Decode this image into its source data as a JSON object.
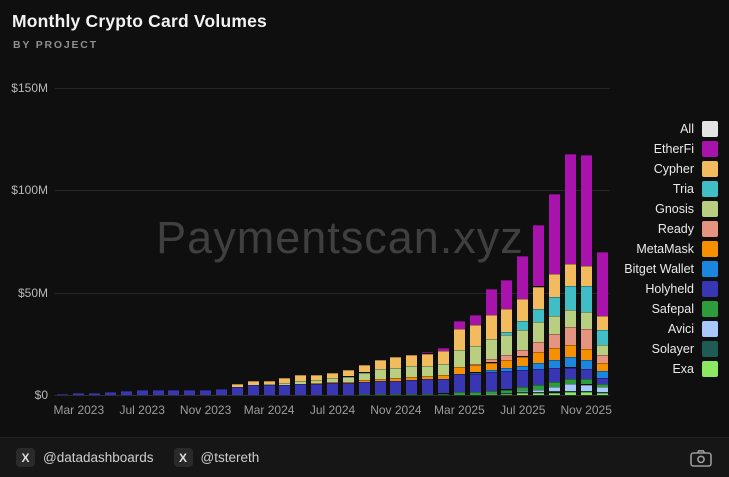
{
  "header": {
    "title": "Monthly Crypto Card Volumes",
    "subtitle": "BY PROJECT"
  },
  "watermark": "Paymentscan.xyz",
  "footer": {
    "handles": [
      "@datadashboards",
      "@tstereth"
    ],
    "x_icon_glyph": "X"
  },
  "chart_data": {
    "type": "bar",
    "stacked": true,
    "title": "Monthly Crypto Card Volumes",
    "subtitle": "BY PROJECT",
    "unit": "USD millions per month",
    "grid": true,
    "legend_position": "right",
    "ylim": [
      0,
      150
    ],
    "y_ticks": [
      {
        "label": "$0",
        "value": 0
      },
      {
        "label": "$50M",
        "value": 50
      },
      {
        "label": "$100M",
        "value": 100
      },
      {
        "label": "$150M",
        "value": 150
      }
    ],
    "categories": [
      "Feb 2023",
      "Mar 2023",
      "Apr 2023",
      "May 2023",
      "Jun 2023",
      "Jul 2023",
      "Aug 2023",
      "Sep 2023",
      "Oct 2023",
      "Nov 2023",
      "Dec 2023",
      "Jan 2024",
      "Feb 2024",
      "Mar 2024",
      "Apr 2024",
      "May 2024",
      "Jun 2024",
      "Jul 2024",
      "Aug 2024",
      "Sep 2024",
      "Oct 2024",
      "Nov 2024",
      "Dec 2024",
      "Jan 2025",
      "Feb 2025",
      "Mar 2025",
      "Apr 2025",
      "May 2025",
      "Jun 2025",
      "Jul 2025",
      "Aug 2025",
      "Sep 2025",
      "Oct 2025",
      "Nov 2025",
      "Dec 2025"
    ],
    "x_tick_labels": [
      "Mar 2023",
      "Jul 2023",
      "Nov 2023",
      "Mar 2024",
      "Jul 2024",
      "Nov 2024",
      "Mar 2025",
      "Jul 2025",
      "Nov 2025"
    ],
    "x_tick_indices": [
      1,
      5,
      9,
      13,
      17,
      21,
      25,
      29,
      33
    ],
    "legend": [
      {
        "name": "All",
        "color": "#e4e4e4"
      },
      {
        "name": "EtherFi",
        "color": "#a813ab"
      },
      {
        "name": "Cypher",
        "color": "#f2bb5e"
      },
      {
        "name": "Tria",
        "color": "#40bdc5"
      },
      {
        "name": "Gnosis",
        "color": "#b8cf82"
      },
      {
        "name": "Ready",
        "color": "#e49480"
      },
      {
        "name": "MetaMask",
        "color": "#f59100"
      },
      {
        "name": "Bitget Wallet",
        "color": "#1b86dd"
      },
      {
        "name": "Holyheld",
        "color": "#3936b4"
      },
      {
        "name": "Safepal",
        "color": "#2d9c3c"
      },
      {
        "name": "Avici",
        "color": "#a9c8fb"
      },
      {
        "name": "Solayer",
        "color": "#1e5b55"
      },
      {
        "name": "Exa",
        "color": "#8ce763"
      }
    ],
    "stack_order_bottom_to_top": [
      "Exa",
      "Solayer",
      "Avici",
      "Safepal",
      "Holyheld",
      "Bitget Wallet",
      "MetaMask",
      "Ready",
      "Gnosis",
      "Tria",
      "Cypher",
      "EtherFi"
    ],
    "series": [
      {
        "name": "EtherFi",
        "color": "#a813ab",
        "values": [
          0,
          0,
          0,
          0,
          0,
          0,
          0,
          0,
          0,
          0,
          0,
          0,
          0,
          0,
          0,
          0,
          0,
          0,
          0,
          0,
          0,
          0,
          0,
          0.7,
          1.5,
          3.8,
          5.0,
          13.0,
          14.0,
          21.0,
          30.0,
          39.0,
          54.1,
          54.4,
          31.6
        ]
      },
      {
        "name": "Cypher",
        "color": "#f2bb5e",
        "values": [
          0,
          0,
          0,
          0,
          0,
          0,
          0,
          0,
          0,
          0,
          0,
          1.5,
          2.0,
          1.8,
          2.5,
          3.0,
          2.5,
          2.6,
          3.0,
          3.5,
          4.5,
          5.3,
          5.5,
          6.0,
          6.3,
          10.0,
          10.0,
          11.5,
          11.0,
          11.0,
          11.0,
          11.0,
          10.5,
          10.0,
          6.5
        ]
      },
      {
        "name": "Tria",
        "color": "#40bdc5",
        "values": [
          0,
          0,
          0,
          0,
          0,
          0,
          0,
          0,
          0,
          0,
          0,
          0,
          0,
          0,
          0,
          0,
          0,
          0,
          0,
          0,
          0,
          0,
          0,
          0,
          0,
          0,
          0,
          0,
          1.6,
          4.2,
          6.5,
          9.2,
          12.0,
          12.5,
          7.3
        ]
      },
      {
        "name": "Gnosis",
        "color": "#b8cf82",
        "values": [
          0,
          0,
          0,
          0,
          0,
          0,
          0,
          0,
          0,
          0,
          0,
          0,
          0,
          0.4,
          1.0,
          1.5,
          1.7,
          2.0,
          2.5,
          3.8,
          4.5,
          5.0,
          5.2,
          5.2,
          5.5,
          8.5,
          9.0,
          10.0,
          10.0,
          10.0,
          9.5,
          9.0,
          8.0,
          8.5,
          4.9
        ]
      },
      {
        "name": "Ready",
        "color": "#e49480",
        "values": [
          0,
          0,
          0,
          0,
          0,
          0,
          0,
          0,
          0,
          0,
          0,
          0,
          0,
          0,
          0,
          0,
          0,
          0,
          0,
          0,
          0,
          0,
          0,
          0,
          0,
          0,
          0.5,
          1.6,
          2.2,
          3.0,
          5.2,
          7.0,
          9.0,
          9.5,
          4.0
        ]
      },
      {
        "name": "MetaMask",
        "color": "#f59100",
        "values": [
          0,
          0,
          0,
          0,
          0,
          0,
          0,
          0,
          0,
          0,
          0,
          0,
          0,
          0,
          0,
          0,
          0.3,
          0.4,
          0.5,
          0.7,
          1.0,
          1.2,
          1.3,
          1.5,
          1.8,
          3.2,
          3.5,
          3.5,
          4.0,
          4.5,
          5.0,
          5.5,
          6.0,
          5.5,
          4.0
        ]
      },
      {
        "name": "Bitget Wallet",
        "color": "#1b86dd",
        "values": [
          0,
          0,
          0,
          0,
          0,
          0,
          0,
          0,
          0,
          0,
          0,
          0,
          0,
          0,
          0,
          0,
          0,
          0,
          0,
          0,
          0,
          0,
          0,
          0,
          0,
          0,
          0.5,
          1.0,
          1.5,
          2.0,
          3.0,
          4.0,
          5.0,
          4.5,
          3.2
        ]
      },
      {
        "name": "Holyheld",
        "color": "#3936b4",
        "values": [
          0.4,
          0.8,
          1.0,
          1.4,
          2.0,
          2.4,
          2.4,
          2.3,
          2.4,
          2.3,
          3.0,
          4.0,
          5.0,
          4.8,
          5.0,
          5.5,
          5.5,
          6.0,
          6.0,
          6.2,
          6.6,
          6.5,
          7.0,
          7.0,
          7.2,
          9.0,
          9.0,
          9.5,
          9.0,
          8.5,
          8.0,
          7.0,
          5.5,
          5.0,
          3.2
        ]
      },
      {
        "name": "Safepal",
        "color": "#2d9c3c",
        "values": [
          0,
          0,
          0,
          0,
          0,
          0,
          0,
          0,
          0,
          0,
          0,
          0,
          0,
          0,
          0,
          0,
          0,
          0,
          0,
          0.3,
          0.4,
          0.5,
          0.5,
          0.6,
          0.7,
          1.5,
          1.5,
          1.6,
          1.8,
          2.0,
          2.2,
          2.4,
          2.6,
          2.5,
          1.6
        ]
      },
      {
        "name": "Avici",
        "color": "#a9c8fb",
        "values": [
          0,
          0,
          0,
          0,
          0,
          0,
          0,
          0,
          0,
          0,
          0,
          0,
          0,
          0,
          0,
          0,
          0,
          0,
          0,
          0,
          0,
          0,
          0,
          0,
          0,
          0,
          0,
          0,
          0,
          0.5,
          1.0,
          2.0,
          3.2,
          3.0,
          2.4
        ]
      },
      {
        "name": "Solayer",
        "color": "#1e5b55",
        "values": [
          0,
          0,
          0,
          0,
          0,
          0,
          0,
          0,
          0,
          0,
          0,
          0,
          0,
          0,
          0,
          0,
          0,
          0,
          0,
          0,
          0,
          0,
          0,
          0,
          0,
          0,
          0,
          0,
          0.4,
          0.5,
          0.6,
          0.7,
          0.8,
          0.8,
          0.5
        ]
      },
      {
        "name": "Exa",
        "color": "#8ce763",
        "values": [
          0,
          0,
          0,
          0,
          0,
          0,
          0,
          0,
          0,
          0,
          0,
          0,
          0,
          0,
          0,
          0,
          0,
          0,
          0,
          0,
          0,
          0,
          0,
          0,
          0,
          0,
          0,
          0.3,
          0.5,
          0.8,
          1.0,
          1.2,
          1.3,
          1.3,
          0.8
        ]
      }
    ]
  }
}
